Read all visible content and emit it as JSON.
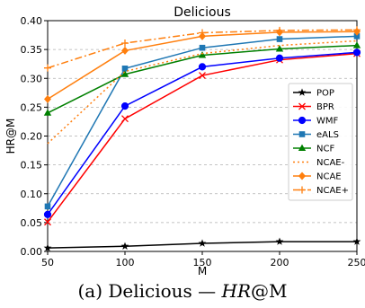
{
  "chart_data": {
    "type": "line",
    "title": "Delicious",
    "xlabel": "M",
    "ylabel": "HR@M",
    "x": [
      50,
      100,
      150,
      200,
      250
    ],
    "xlim": [
      50,
      250
    ],
    "ylim": [
      0.0,
      0.4
    ],
    "x_ticks": [
      "50",
      "100",
      "150",
      "200",
      "250"
    ],
    "y_ticks": [
      "0.00",
      "0.05",
      "0.10",
      "0.15",
      "0.20",
      "0.25",
      "0.30",
      "0.35",
      "0.40"
    ],
    "grid": "horizontal dashed",
    "legend_position": "right",
    "series": [
      {
        "name": "POP",
        "color": "#000000",
        "marker": "star",
        "dash": "",
        "values": [
          0.006,
          0.009,
          0.014,
          0.017,
          0.017
        ]
      },
      {
        "name": "BPR",
        "color": "#ff0000",
        "marker": "x",
        "dash": "",
        "values": [
          0.051,
          0.23,
          0.305,
          0.332,
          0.343
        ]
      },
      {
        "name": "WMF",
        "color": "#0000ff",
        "marker": "circle",
        "dash": "",
        "values": [
          0.064,
          0.252,
          0.32,
          0.335,
          0.345
        ]
      },
      {
        "name": "eALS",
        "color": "#1f77b4",
        "marker": "square",
        "dash": "",
        "values": [
          0.078,
          0.317,
          0.353,
          0.368,
          0.373
        ]
      },
      {
        "name": "NCF",
        "color": "#008000",
        "marker": "triangle",
        "dash": "",
        "values": [
          0.24,
          0.307,
          0.34,
          0.351,
          0.357
        ]
      },
      {
        "name": "NCAE-",
        "color": "#ff7f0e",
        "marker": "none",
        "dash": "2,3",
        "values": [
          0.187,
          0.312,
          0.343,
          0.357,
          0.365
        ]
      },
      {
        "name": "NCAE",
        "color": "#ff7f0e",
        "marker": "diamond",
        "dash": "",
        "values": [
          0.264,
          0.348,
          0.373,
          0.38,
          0.381
        ]
      },
      {
        "name": "NCAE+",
        "color": "#ff7f0e",
        "marker": "plus",
        "dash": "8,3,2,3",
        "values": [
          0.318,
          0.361,
          0.379,
          0.383,
          0.384
        ]
      }
    ]
  },
  "caption": {
    "prefix": "(a) Delicious — ",
    "metric": "HR",
    "suffix": "@M"
  }
}
